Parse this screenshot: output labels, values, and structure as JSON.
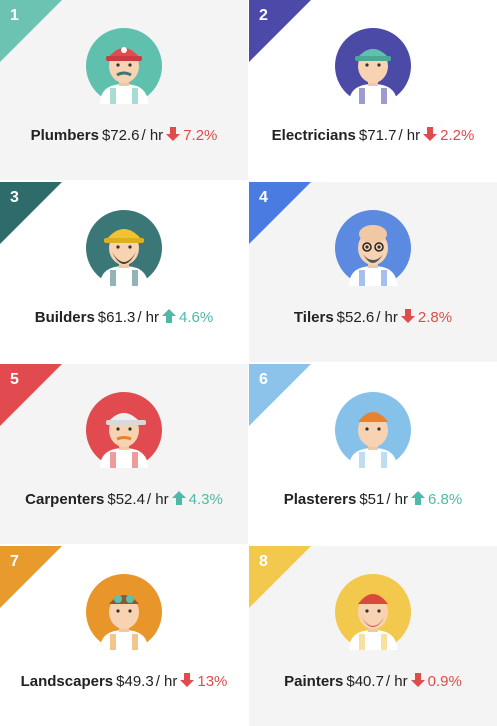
{
  "unit": "/ hr",
  "colors": {
    "up": "#4fb8a8",
    "down": "#e04b4b"
  },
  "cards": [
    {
      "rank": "1",
      "name": "Plumbers",
      "rate": "$72.6",
      "trend": "down",
      "change": "7.2%",
      "corner_color": "#6cc3b1",
      "circle_color": "#5fc0ae",
      "avatar_icon": "plumber-avatar-icon"
    },
    {
      "rank": "2",
      "name": "Electricians",
      "rate": "$71.7",
      "trend": "down",
      "change": "2.2%",
      "corner_color": "#4d49a8",
      "circle_color": "#4b4aa7",
      "avatar_icon": "electrician-avatar-icon"
    },
    {
      "rank": "3",
      "name": "Builders",
      "rate": "$61.3",
      "trend": "up",
      "change": "4.6%",
      "corner_color": "#2f6b6b",
      "circle_color": "#3b7777",
      "avatar_icon": "builder-avatar-icon"
    },
    {
      "rank": "4",
      "name": "Tilers",
      "rate": "$52.6",
      "trend": "down",
      "change": "2.8%",
      "corner_color": "#4a7be0",
      "circle_color": "#5b8ae0",
      "avatar_icon": "tiler-avatar-icon"
    },
    {
      "rank": "5",
      "name": "Carpenters",
      "rate": "$52.4",
      "trend": "up",
      "change": "4.3%",
      "corner_color": "#e14a4f",
      "circle_color": "#e14a4f",
      "avatar_icon": "carpenter-avatar-icon"
    },
    {
      "rank": "6",
      "name": "Plasterers",
      "rate": "$51",
      "trend": "up",
      "change": "6.8%",
      "corner_color": "#8cc3ea",
      "circle_color": "#86c1ea",
      "avatar_icon": "plasterer-avatar-icon"
    },
    {
      "rank": "7",
      "name": "Landscapers",
      "rate": "$49.3",
      "trend": "down",
      "change": "13%",
      "corner_color": "#e89a2c",
      "circle_color": "#e8962a",
      "avatar_icon": "landscaper-avatar-icon"
    },
    {
      "rank": "8",
      "name": "Painters",
      "rate": "$40.7",
      "trend": "down",
      "change": "0.9%",
      "corner_color": "#f2c94c",
      "circle_color": "#f2c94c",
      "avatar_icon": "painter-avatar-icon"
    }
  ]
}
